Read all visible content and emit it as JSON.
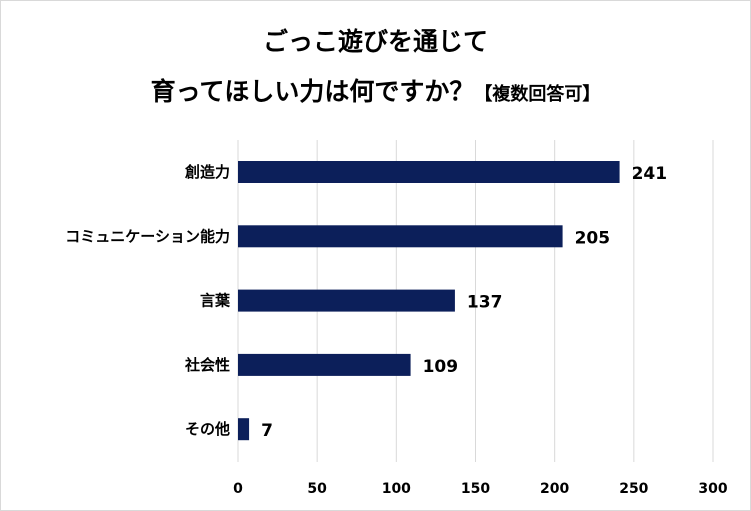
{
  "chart_data": {
    "type": "bar",
    "orientation": "horizontal",
    "title_line1": "ごっこ遊びを通じて",
    "title_line2": "育ってほしい力は何ですか？",
    "title_note": "【複数回答可】",
    "categories": [
      "創造力",
      "コミュニケーション能力",
      "言葉",
      "社会性",
      "その他"
    ],
    "values": [
      241,
      205,
      137,
      109,
      7
    ],
    "xlim": [
      0,
      300
    ],
    "xticks": [
      0,
      50,
      100,
      150,
      200,
      250,
      300
    ],
    "grid": true,
    "bar_color": "#0c1f5a",
    "xlabel": "",
    "ylabel": ""
  }
}
